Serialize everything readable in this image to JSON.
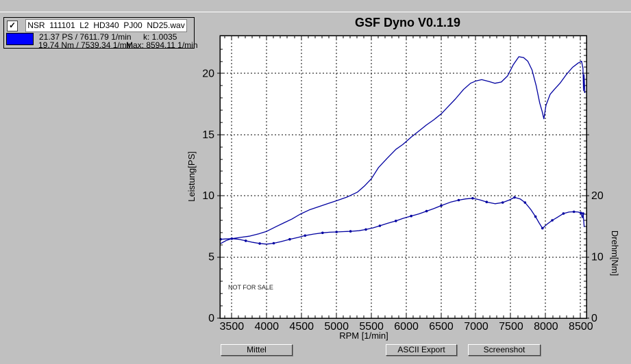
{
  "window": {
    "background": "#c0c0c0"
  },
  "legend": {
    "checkbox_checked": true,
    "checkmark": "✓",
    "filename": "NSR  111101  L2  HD340  PJ00  ND25.wav",
    "swatch_color": "#0000ff",
    "line1_left": "21.37 PS / 7611.79 1/min",
    "line1_right": "k: 1.0035",
    "line2_left": "19.74 Nm / 7539.34 1/min",
    "line2_right": "Max: 8594.11 1/min"
  },
  "watermark": "NOT FOR SALE",
  "buttons": [
    {
      "label": "Mittel"
    },
    {
      "label": "ASCII Export"
    },
    {
      "label": "Screenshot"
    }
  ],
  "chart_data": {
    "type": "line",
    "title": "GSF Dyno V0.1.19",
    "xlabel": "RPM [1/min]",
    "ylabel_left": "Leistung[PS]",
    "ylabel_right": "Drehm[Nm]",
    "x_ticks": [
      3500,
      4000,
      4500,
      5000,
      5500,
      6000,
      6500,
      7000,
      7500,
      8000,
      8500
    ],
    "y_left_ticks": [
      0,
      5,
      10,
      15,
      20
    ],
    "y_right_ticks": [
      0,
      10,
      20
    ],
    "xlim": [
      3330,
      8580
    ],
    "ylim_left": [
      0,
      23.1
    ],
    "ylim_right": [
      0,
      46.2
    ],
    "grid": true,
    "legend_position": "top-left-outside",
    "line_color": "#0000a0",
    "series": [
      {
        "name": "Leistung (power)",
        "axis": "left",
        "units": "PS",
        "markers": false,
        "peak": {
          "value": 21.37,
          "rpm": 7611.79
        },
        "points": [
          [
            3340,
            6.1
          ],
          [
            3420,
            6.35
          ],
          [
            3500,
            6.5
          ],
          [
            3620,
            6.6
          ],
          [
            3750,
            6.7
          ],
          [
            3890,
            6.9
          ],
          [
            4000,
            7.1
          ],
          [
            4140,
            7.5
          ],
          [
            4250,
            7.8
          ],
          [
            4360,
            8.1
          ],
          [
            4480,
            8.5
          ],
          [
            4610,
            8.85
          ],
          [
            4740,
            9.1
          ],
          [
            4870,
            9.35
          ],
          [
            5000,
            9.6
          ],
          [
            5150,
            9.9
          ],
          [
            5300,
            10.3
          ],
          [
            5400,
            10.8
          ],
          [
            5500,
            11.4
          ],
          [
            5600,
            12.3
          ],
          [
            5730,
            13.1
          ],
          [
            5850,
            13.8
          ],
          [
            5950,
            14.2
          ],
          [
            6070,
            14.8
          ],
          [
            6180,
            15.3
          ],
          [
            6290,
            15.8
          ],
          [
            6390,
            16.2
          ],
          [
            6500,
            16.7
          ],
          [
            6600,
            17.3
          ],
          [
            6700,
            17.9
          ],
          [
            6820,
            18.7
          ],
          [
            6920,
            19.2
          ],
          [
            7000,
            19.4
          ],
          [
            7080,
            19.5
          ],
          [
            7180,
            19.35
          ],
          [
            7270,
            19.2
          ],
          [
            7360,
            19.3
          ],
          [
            7450,
            19.8
          ],
          [
            7530,
            20.7
          ],
          [
            7611,
            21.37
          ],
          [
            7680,
            21.3
          ],
          [
            7740,
            21.0
          ],
          [
            7800,
            20.3
          ],
          [
            7860,
            19.0
          ],
          [
            7910,
            17.6
          ],
          [
            7945,
            16.9
          ],
          [
            7970,
            16.3
          ],
          [
            8000,
            17.4
          ],
          [
            8060,
            18.3
          ],
          [
            8120,
            18.7
          ],
          [
            8200,
            19.2
          ],
          [
            8290,
            19.9
          ],
          [
            8380,
            20.5
          ],
          [
            8460,
            20.85
          ],
          [
            8510,
            21.0
          ],
          [
            8530,
            20.4
          ],
          [
            8538,
            18.6
          ],
          [
            8546,
            19.9
          ],
          [
            8556,
            18.4
          ]
        ]
      },
      {
        "name": "Drehmoment (torque)",
        "axis": "right",
        "units": "Nm",
        "markers": true,
        "marker_every": 2,
        "peak": {
          "value": 19.74,
          "rpm": 7539.34
        },
        "points": [
          [
            3340,
            12.9
          ],
          [
            3420,
            12.95
          ],
          [
            3500,
            13.0
          ],
          [
            3600,
            12.9
          ],
          [
            3700,
            12.65
          ],
          [
            3800,
            12.4
          ],
          [
            3900,
            12.2
          ],
          [
            4000,
            12.1
          ],
          [
            4100,
            12.25
          ],
          [
            4200,
            12.5
          ],
          [
            4330,
            12.9
          ],
          [
            4450,
            13.2
          ],
          [
            4550,
            13.5
          ],
          [
            4670,
            13.75
          ],
          [
            4800,
            13.95
          ],
          [
            4900,
            14.05
          ],
          [
            5000,
            14.1
          ],
          [
            5100,
            14.15
          ],
          [
            5200,
            14.2
          ],
          [
            5320,
            14.3
          ],
          [
            5420,
            14.5
          ],
          [
            5520,
            14.75
          ],
          [
            5620,
            15.1
          ],
          [
            5730,
            15.5
          ],
          [
            5850,
            15.9
          ],
          [
            5950,
            16.3
          ],
          [
            6070,
            16.7
          ],
          [
            6180,
            17.05
          ],
          [
            6290,
            17.5
          ],
          [
            6390,
            17.9
          ],
          [
            6500,
            18.4
          ],
          [
            6640,
            19.0
          ],
          [
            6750,
            19.3
          ],
          [
            6850,
            19.5
          ],
          [
            6950,
            19.6
          ],
          [
            7050,
            19.35
          ],
          [
            7150,
            19.0
          ],
          [
            7270,
            18.7
          ],
          [
            7380,
            18.9
          ],
          [
            7470,
            19.3
          ],
          [
            7550,
            19.74
          ],
          [
            7630,
            19.5
          ],
          [
            7700,
            18.9
          ],
          [
            7780,
            17.8
          ],
          [
            7850,
            16.6
          ],
          [
            7900,
            15.6
          ],
          [
            7950,
            14.7
          ],
          [
            8020,
            15.4
          ],
          [
            8090,
            16.0
          ],
          [
            8150,
            16.4
          ],
          [
            8250,
            17.1
          ],
          [
            8330,
            17.35
          ],
          [
            8400,
            17.4
          ],
          [
            8460,
            17.35
          ],
          [
            8500,
            17.2
          ],
          [
            8520,
            16.4
          ],
          [
            8532,
            17.1
          ],
          [
            8548,
            14.9
          ]
        ]
      }
    ]
  }
}
